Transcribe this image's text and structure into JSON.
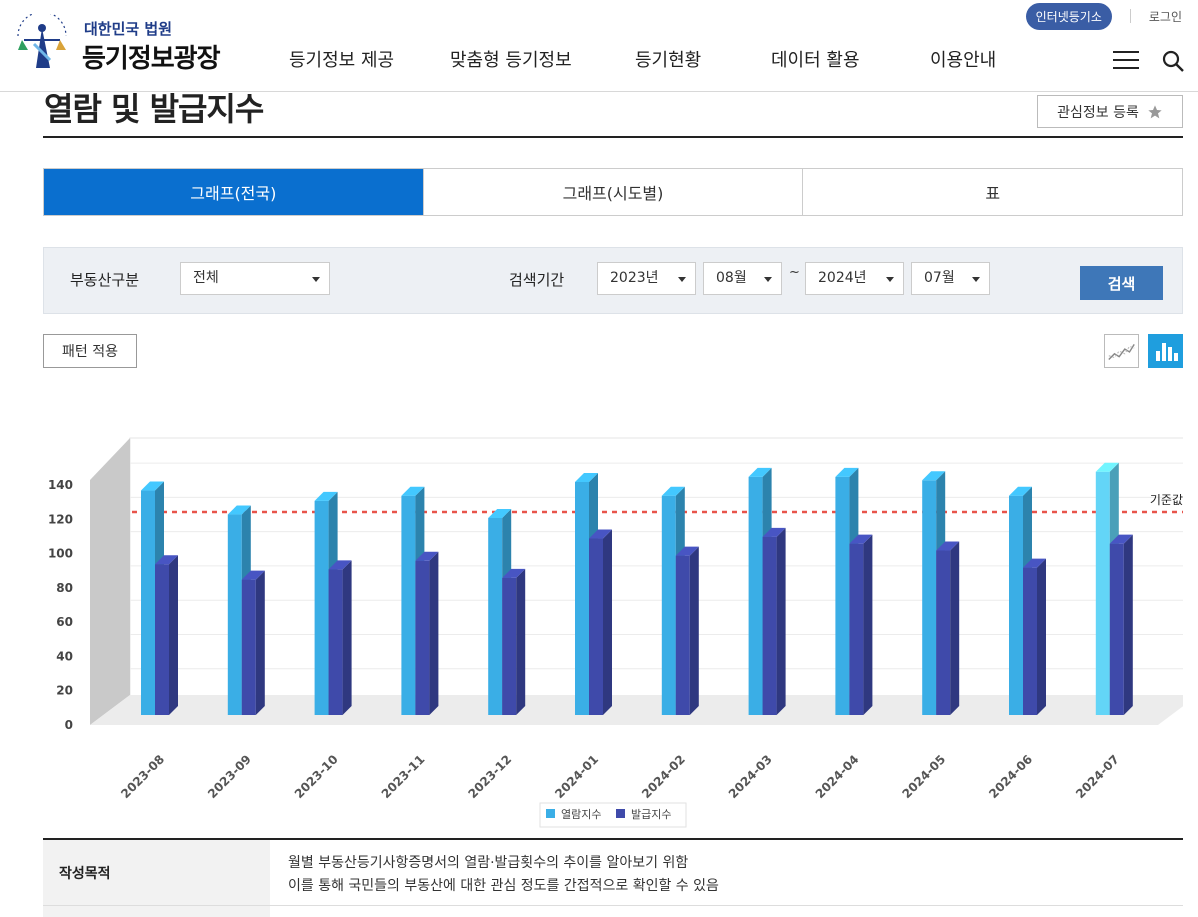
{
  "header": {
    "logo_sub": "대한민국 법원",
    "logo_main": "등기정보광장",
    "util_button": "인터넷등기소",
    "util_login": "로그인",
    "nav": [
      "등기정보 제공",
      "맞춤형 등기정보",
      "등기현황",
      "데이터 활용",
      "이용안내"
    ]
  },
  "page": {
    "title": "열람 및 발급지수",
    "fav_button": "관심정보 등록"
  },
  "tabs": [
    {
      "label": "그래프(전국)",
      "active": true
    },
    {
      "label": "그래프(시도별)",
      "active": false
    },
    {
      "label": "표",
      "active": false
    }
  ],
  "search": {
    "property_label": "부동산구분",
    "property_value": "전체",
    "period_label": "검색기간",
    "start_year": "2023년",
    "start_month": "08월",
    "tilde": "~",
    "end_year": "2024년",
    "end_month": "07월",
    "button": "검색"
  },
  "pattern_button": "패턴 적용",
  "chart_data": {
    "type": "bar",
    "categories": [
      "2023-08",
      "2023-09",
      "2023-10",
      "2023-11",
      "2023-12",
      "2024-01",
      "2024-02",
      "2024-03",
      "2024-04",
      "2024-05",
      "2024-06",
      "2024-07"
    ],
    "series": [
      {
        "name": "열람지수",
        "values": [
          131,
          117,
          125,
          128,
          115,
          136,
          128,
          139,
          139,
          137,
          128,
          142
        ],
        "color": "#3aaee6"
      },
      {
        "name": "발급지수",
        "values": [
          88,
          79,
          85,
          90,
          80,
          103,
          93,
          104,
          100,
          96,
          86,
          100
        ],
        "color": "#3f4aaa"
      }
    ],
    "reference_line": {
      "label": "기준값",
      "value": 115,
      "color": "#e8534a"
    },
    "highlight_last_color": "#63d5f7",
    "y_ticks": [
      0,
      20,
      40,
      60,
      80,
      100,
      120,
      140
    ],
    "ylim": [
      0,
      150
    ],
    "grid": true,
    "legend_placement": "bottom-center"
  },
  "info": {
    "label": "작성목적",
    "line1": "월별 부동산등기사항증명서의 열람·발급횟수의 추이를 알아보기 위함",
    "line2": "이를 통해 국민들의 부동산에 대한 관심 정도를 간접적으로 확인할 수 있음"
  }
}
